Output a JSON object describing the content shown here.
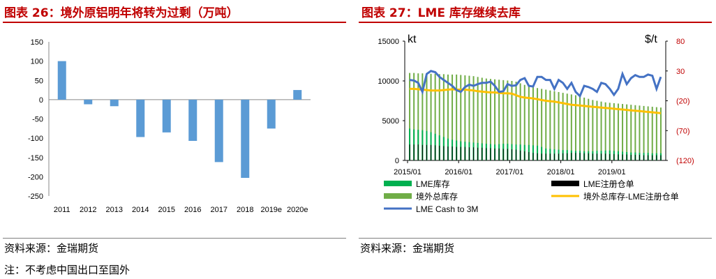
{
  "left_panel": {
    "title": "图表 26：境外原铝明年将转为过剩（万吨）",
    "source": "资料来源：金瑞期货",
    "note": "注：不考虑中国出口至国外",
    "colors": {
      "bar": "#5b9bd5",
      "title": "#c00000"
    }
  },
  "right_panel": {
    "title": "图表 27：LME 库存继续去库",
    "source": "资料来源：金瑞期货",
    "left_unit": "kt",
    "right_unit": "$/t",
    "colors": {
      "lme": "#00b050",
      "total": "#70ad47",
      "warrant": "#000000",
      "diff": "#ffc000",
      "cash": "#4472c4",
      "right_axis": "#c00000"
    }
  },
  "chart_data": [
    {
      "type": "bar",
      "categories": [
        "2011",
        "2012",
        "2013",
        "2014",
        "2015",
        "2016",
        "2017",
        "2018",
        "2019e",
        "2020e"
      ],
      "values": [
        100,
        -12,
        -17,
        -97,
        -85,
        -107,
        -162,
        -203,
        -75,
        25
      ],
      "ylim": [
        -250,
        150
      ],
      "yticks": [
        "150",
        "100",
        "50",
        "0",
        "-50",
        "-100",
        "-150",
        "-200",
        "-250"
      ]
    },
    {
      "type": "bar",
      "x_ticks": [
        "2015/01",
        "2016/01",
        "2017/01",
        "2018/01",
        "2019/01"
      ],
      "y_left": {
        "range": [
          0,
          15000
        ],
        "ticks": [
          "15000",
          "10000",
          "5000",
          "0"
        ]
      },
      "y_right": {
        "range": [
          -120,
          80
        ],
        "ticks": [
          "80",
          "30",
          "(20)",
          "(70)",
          "(120)"
        ]
      },
      "series": [
        {
          "name": "LME库存",
          "kind": "bar",
          "axis": "left",
          "start": [
            4000,
            3900,
            3850,
            3800,
            3700,
            3550,
            3350,
            3150,
            2950,
            2750,
            2600,
            2500,
            2400,
            2350,
            2300,
            2250,
            2200,
            2150,
            2100,
            2050,
            2000,
            2050,
            2100,
            2100,
            2050,
            2000,
            2000,
            1950,
            1950,
            1900,
            1850,
            1700,
            1500,
            1450,
            1400,
            1350,
            1300,
            1300,
            1250,
            1200,
            1200,
            1150,
            1150,
            1150,
            1200,
            1200,
            1250,
            1250,
            1200,
            1150,
            1100,
            1050,
            1000,
            1000,
            950,
            950,
            950,
            900,
            900,
            900
          ],
          "end": [
            950
          ]
        },
        {
          "name": "LME注册仓单",
          "kind": "bar",
          "axis": "left",
          "start": [
            2000,
            2000,
            2000,
            1950,
            1950,
            1950,
            1900,
            1850,
            1800,
            1750,
            1750,
            1700,
            1700,
            1700,
            1650,
            1650,
            1600,
            1600,
            1550,
            1550,
            1500,
            1500,
            1450,
            1450,
            1400,
            1350,
            1250,
            1150,
            1050,
            950,
            900,
            850,
            850,
            850,
            850,
            850,
            900,
            900,
            950,
            950,
            950,
            900,
            900,
            850,
            850,
            850,
            850,
            800,
            800,
            750,
            750,
            750,
            700,
            700,
            700,
            650,
            650,
            650,
            650,
            650
          ]
        },
        {
          "name": "境外总库存",
          "kind": "bar",
          "axis": "left",
          "values": [
            11000,
            11000,
            10950,
            10950,
            10900,
            10900,
            10900,
            10850,
            10850,
            10800,
            10800,
            10800,
            10750,
            10700,
            10650,
            10600,
            10500,
            10400,
            10300,
            10250,
            10200,
            10150,
            10100,
            10050,
            10000,
            9900,
            9700,
            9500,
            9300,
            9200,
            9100,
            9000,
            8900,
            8800,
            8700,
            8600,
            8500,
            8400,
            8300,
            8200,
            8050,
            7900,
            7750,
            7600,
            7500,
            7400,
            7300,
            7250,
            7200,
            7150,
            7100,
            7050,
            7000,
            6950,
            6900,
            6850,
            6800,
            6750,
            6700,
            6650
          ]
        },
        {
          "name": "境外总库存-LME注册仓单",
          "kind": "line",
          "axis": "left",
          "values": [
            9000,
            9000,
            8950,
            8900,
            8850,
            8800,
            8800,
            8800,
            8850,
            8900,
            8950,
            8900,
            8900,
            8900,
            8850,
            8800,
            8700,
            8650,
            8600,
            8550,
            8550,
            8500,
            8450,
            8450,
            8400,
            8200,
            8000,
            7900,
            7850,
            7800,
            7700,
            7600,
            7500,
            7450,
            7400,
            7300,
            7200,
            7100,
            7000,
            6950,
            6900,
            6850,
            6800,
            6750,
            6700,
            6650,
            6600,
            6550,
            6500,
            6450,
            6400,
            6350,
            6300,
            6250,
            6200,
            6150,
            6100,
            6050,
            6000,
            5950
          ]
        },
        {
          "name": "LME Cash to 3M",
          "kind": "line",
          "axis": "right",
          "values": [
            15,
            14,
            10,
            -5,
            25,
            30,
            28,
            20,
            15,
            10,
            5,
            -2,
            -5,
            3,
            7,
            5,
            8,
            10,
            10,
            12,
            5,
            -5,
            -4,
            8,
            5,
            6,
            15,
            18,
            5,
            4,
            20,
            20,
            15,
            15,
            0,
            15,
            10,
            0,
            10,
            -5,
            -12,
            5,
            3,
            0,
            -5,
            10,
            8,
            0,
            -10,
            0,
            25,
            8,
            18,
            23,
            20,
            20,
            24,
            22,
            0,
            20
          ]
        }
      ]
    }
  ]
}
